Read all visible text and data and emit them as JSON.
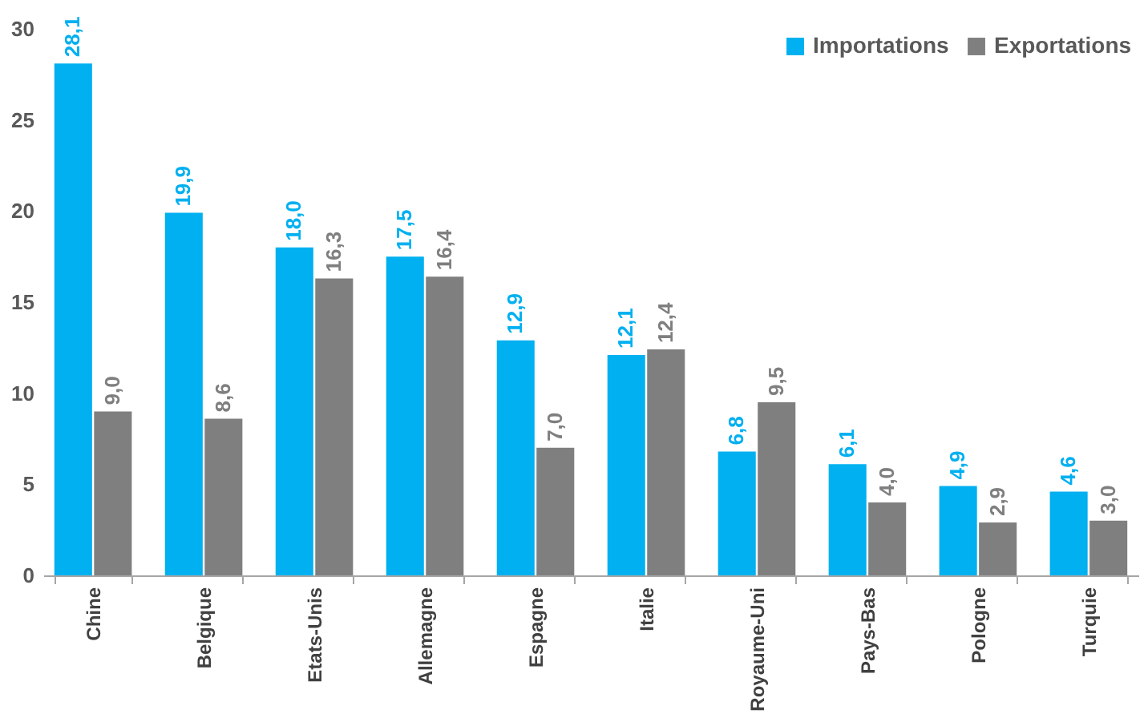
{
  "chart_data": {
    "type": "bar",
    "categories": [
      "Chine",
      "Belgique",
      "Etats-Unis",
      "Allemagne",
      "Espagne",
      "Italie",
      "Royaume-Uni",
      "Pays-Bas",
      "Pologne",
      "Turquie"
    ],
    "series": [
      {
        "name": "Importations",
        "color": "#00b0f0",
        "values": [
          28.1,
          19.9,
          18.0,
          17.5,
          12.9,
          12.1,
          6.8,
          6.1,
          4.9,
          4.6
        ],
        "value_labels": [
          "28,1",
          "19,9",
          "18,0",
          "17,5",
          "12,9",
          "12,1",
          "6,8",
          "6,1",
          "4,9",
          "4,6"
        ]
      },
      {
        "name": "Exportations",
        "color": "#7f7f7f",
        "values": [
          9.0,
          8.6,
          16.3,
          16.4,
          7.0,
          12.4,
          9.5,
          4.0,
          2.9,
          3.0
        ],
        "value_labels": [
          "9,0",
          "8,6",
          "16,3",
          "16,4",
          "7,0",
          "12,4",
          "9,5",
          "4,0",
          "2,9",
          "3,0"
        ]
      }
    ],
    "ylim": [
      0,
      30
    ],
    "yticks": [
      0,
      5,
      10,
      15,
      20,
      25,
      30
    ],
    "grid": false,
    "legend": "top right"
  }
}
